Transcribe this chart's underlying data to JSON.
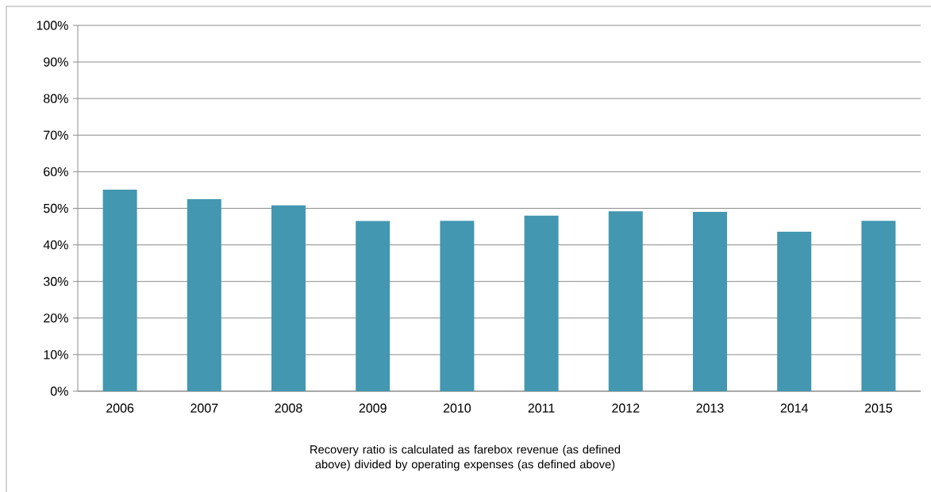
{
  "chart_data": {
    "type": "bar",
    "categories": [
      "2006",
      "2007",
      "2008",
      "2009",
      "2010",
      "2011",
      "2012",
      "2013",
      "2014",
      "2015"
    ],
    "values": [
      55.1,
      52.5,
      50.8,
      46.5,
      46.6,
      48.0,
      49.2,
      49.0,
      43.6,
      46.6
    ],
    "color": "#4397b0",
    "ylim": [
      0,
      100
    ],
    "yticks": [
      {
        "value": 0,
        "label": "0%"
      },
      {
        "value": 10,
        "label": "10%"
      },
      {
        "value": 20,
        "label": "20%"
      },
      {
        "value": 30,
        "label": "30%"
      },
      {
        "value": 40,
        "label": "40%"
      },
      {
        "value": 50,
        "label": "50%"
      },
      {
        "value": 60,
        "label": "60%"
      },
      {
        "value": 70,
        "label": "70%"
      },
      {
        "value": 80,
        "label": "80%"
      },
      {
        "value": 90,
        "label": "90%"
      },
      {
        "value": 100,
        "label": "100%"
      }
    ],
    "grid": "y",
    "annotations": [
      "Recovery ratio is calculated as farebox revenue (as defined above) divided by operating expenses (as defined above)"
    ]
  }
}
